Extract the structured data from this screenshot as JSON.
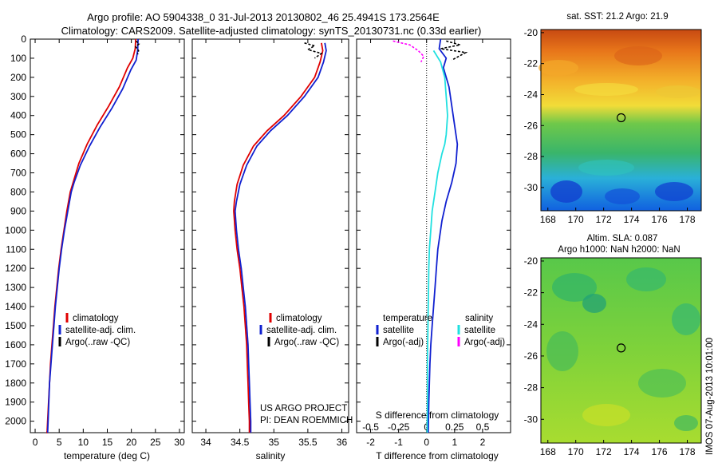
{
  "header": {
    "title_line1": "Argo profile: AO 5904338_0 31-Jul-2013 20130802_46 25.4941S 173.2564E",
    "title_line2": "Climatology: CARS2009. Satellite-adjusted climatology: synTS_20130731.nc (0.33d earlier)"
  },
  "credits": {
    "project": "US ARGO PROJECT",
    "pi": "PI: DEAN ROEMMICH",
    "stamp": "IMOS 07-Aug-2013 10:01:00"
  },
  "chart_data": [
    {
      "type": "line",
      "panel": "temperature",
      "xlabel": "temperature (deg C)",
      "xlim": [
        -1,
        31
      ],
      "ylim": [
        2060,
        0
      ],
      "y_inverted": true,
      "x_ticks": [
        0,
        5,
        10,
        15,
        20,
        25,
        30
      ],
      "y_ticks": [
        0,
        100,
        200,
        300,
        400,
        500,
        600,
        700,
        800,
        900,
        1000,
        1100,
        1200,
        1300,
        1400,
        1500,
        1600,
        1700,
        1800,
        1900,
        2000
      ],
      "legend": [
        "climatology",
        "satellite-adj. clim.",
        "Argo(..raw -QC)"
      ],
      "legend_colors": [
        "#e00000",
        "#1020d0",
        "#000000"
      ],
      "series": [
        {
          "name": "climatology",
          "color": "#e00000",
          "x": [
            20.9,
            20.8,
            20.3,
            19.2,
            17.5,
            15.3,
            12.9,
            10.8,
            9.1,
            7.9,
            7.3,
            6.6,
            6.0,
            5.4,
            4.9,
            4.5,
            4.1,
            3.8,
            3.5,
            3.2,
            3.0,
            2.8,
            2.6,
            2.5,
            2.45,
            2.4,
            2.35
          ],
          "y": [
            0,
            50,
            100,
            150,
            250,
            350,
            450,
            550,
            650,
            750,
            800,
            900,
            1000,
            1100,
            1200,
            1300,
            1400,
            1500,
            1600,
            1700,
            1800,
            1900,
            2000,
            2050,
            2060,
            2060,
            2060
          ]
        },
        {
          "name": "satellite-adj. clim.",
          "color": "#1020d0",
          "x": [
            21.4,
            21.3,
            21.0,
            19.9,
            18.2,
            16.0,
            13.5,
            11.3,
            9.4,
            8.1,
            7.5,
            6.8,
            6.1,
            5.5,
            5.0,
            4.6,
            4.2,
            3.9,
            3.6,
            3.3,
            3.0,
            2.85,
            2.7,
            2.6
          ],
          "y": [
            0,
            60,
            110,
            160,
            260,
            360,
            460,
            560,
            660,
            750,
            800,
            900,
            1000,
            1100,
            1200,
            1300,
            1400,
            1500,
            1600,
            1700,
            1800,
            1900,
            2000,
            2060
          ]
        },
        {
          "name": "Argo(..raw -QC)",
          "color": "#000000",
          "x": [
            21.0,
            21.6,
            20.9,
            21.5,
            21.3
          ],
          "y": [
            10,
            25,
            40,
            60,
            80
          ]
        }
      ]
    },
    {
      "type": "line",
      "panel": "salinity",
      "xlabel": "salinity",
      "xlim": [
        33.8,
        36.1
      ],
      "ylim": [
        2060,
        0
      ],
      "y_inverted": true,
      "x_ticks": [
        34,
        34.5,
        35,
        35.5,
        36
      ],
      "legend": [
        "climatology",
        "satellite-adj. clim.",
        "Argo(..raw -QC)"
      ],
      "legend_colors": [
        "#e00000",
        "#1020d0",
        "#000000"
      ],
      "series": [
        {
          "name": "climatology",
          "color": "#e00000",
          "x": [
            35.7,
            35.72,
            35.68,
            35.6,
            35.4,
            35.15,
            34.9,
            34.7,
            34.55,
            34.46,
            34.42,
            34.41,
            34.43,
            34.46,
            34.5,
            34.53,
            34.56,
            34.58,
            34.6,
            34.61,
            34.62,
            34.63,
            34.64,
            34.64
          ],
          "y": [
            20,
            60,
            120,
            200,
            300,
            400,
            480,
            560,
            660,
            760,
            850,
            900,
            1000,
            1100,
            1200,
            1300,
            1400,
            1500,
            1600,
            1700,
            1800,
            1900,
            2000,
            2060
          ]
        },
        {
          "name": "satellite-adj. clim.",
          "color": "#1020d0",
          "x": [
            35.75,
            35.77,
            35.73,
            35.65,
            35.45,
            35.2,
            34.95,
            34.75,
            34.6,
            34.5,
            34.45,
            34.43,
            34.45,
            34.48,
            34.52,
            34.55,
            34.58,
            34.6,
            34.62,
            34.63,
            34.64,
            34.65,
            34.66,
            34.66
          ],
          "y": [
            20,
            60,
            120,
            200,
            300,
            400,
            480,
            560,
            660,
            760,
            850,
            900,
            1000,
            1100,
            1200,
            1300,
            1400,
            1500,
            1600,
            1700,
            1800,
            1900,
            2000,
            2060
          ]
        },
        {
          "name": "Argo(..raw -QC)",
          "color": "#000000",
          "x": [
            35.45,
            35.6,
            35.5,
            35.7,
            35.6
          ],
          "y": [
            20,
            35,
            55,
            75,
            100
          ]
        }
      ]
    },
    {
      "type": "line",
      "panel": "difference",
      "xlabel": "T difference from climatology",
      "xlabel_top": "S difference from climatology",
      "xlim": [
        -2.5,
        3.0
      ],
      "ylim": [
        2060,
        0
      ],
      "y_inverted": true,
      "x_ticks": [
        -2,
        -1,
        0,
        1,
        2
      ],
      "x_ticks_top": [
        -0.5,
        -0.25,
        0,
        0.25,
        0.5
      ],
      "legend_groups": [
        "temperature",
        "salinity"
      ],
      "legend": [
        "satellite",
        "Argo(-adj)",
        "satellite",
        "Argo(-adj)"
      ],
      "legend_colors": [
        "#1020d0",
        "#000000",
        "#20e0e0",
        "#ff00ff"
      ],
      "series": [
        {
          "name": "satellite",
          "group": "temperature",
          "color": "#1020d0",
          "x": [
            0.5,
            0.45,
            0.7,
            0.6,
            0.8,
            0.9,
            1.0,
            1.1,
            1.05,
            0.9,
            0.7,
            0.55,
            0.5,
            0.4,
            0.35,
            0.3,
            0.25,
            0.2,
            0.15,
            0.12,
            0.1,
            0.08,
            0.06
          ],
          "y": [
            0,
            50,
            100,
            150,
            250,
            350,
            450,
            550,
            650,
            750,
            850,
            950,
            1000,
            1100,
            1200,
            1300,
            1400,
            1500,
            1600,
            1700,
            1800,
            1900,
            2060
          ]
        },
        {
          "name": "satellite",
          "group": "salinity",
          "color": "#20e0e0",
          "x": [
            0.25,
            0.5,
            0.65,
            0.7,
            0.75,
            0.7,
            0.65,
            0.55,
            0.4,
            0.3,
            0.2,
            0.15,
            0.1,
            0.08,
            0.07,
            0.06,
            0.05,
            0.04,
            0.03,
            0.03,
            0.02
          ],
          "y": [
            60,
            120,
            200,
            300,
            400,
            500,
            550,
            600,
            700,
            800,
            900,
            1000,
            1100,
            1200,
            1300,
            1400,
            1500,
            1600,
            1700,
            1900,
            2060
          ]
        },
        {
          "name": "Argo(-adj)",
          "group": "temperature",
          "color": "#000000",
          "x": [
            0.7,
            1.2,
            0.5,
            1.4,
            0.9
          ],
          "y": [
            10,
            30,
            50,
            70,
            110
          ]
        },
        {
          "name": "Argo(-adj)",
          "group": "salinity",
          "color": "#ff00ff",
          "x": [
            -1.2,
            -0.6,
            -0.3,
            -0.1,
            -0.2
          ],
          "y": [
            10,
            30,
            60,
            90,
            120
          ]
        }
      ]
    },
    {
      "type": "heatmap",
      "panel": "sst_map",
      "title": "sat. SST: 21.2 Argo: 21.9",
      "x_ticks": [
        168,
        170,
        172,
        174,
        176,
        178
      ],
      "y_ticks": [
        -20,
        -22,
        -24,
        -26,
        -28,
        -30
      ],
      "xlim": [
        167.5,
        179.0
      ],
      "ylim": [
        -31.5,
        -19.8
      ],
      "argo_position": {
        "lon": 173.2564,
        "lat": -25.4941
      }
    },
    {
      "type": "heatmap",
      "panel": "sla_map",
      "title_line1": "Altim. SLA: 0.087",
      "title_line2": "Argo h1000: NaN h2000: NaN",
      "x_ticks": [
        168,
        170,
        172,
        174,
        176,
        178
      ],
      "y_ticks": [
        -20,
        -22,
        -24,
        -26,
        -28,
        -30
      ],
      "xlim": [
        167.5,
        179.0
      ],
      "ylim": [
        -31.5,
        -19.8
      ],
      "argo_position": {
        "lon": 173.2564,
        "lat": -25.4941
      }
    }
  ]
}
